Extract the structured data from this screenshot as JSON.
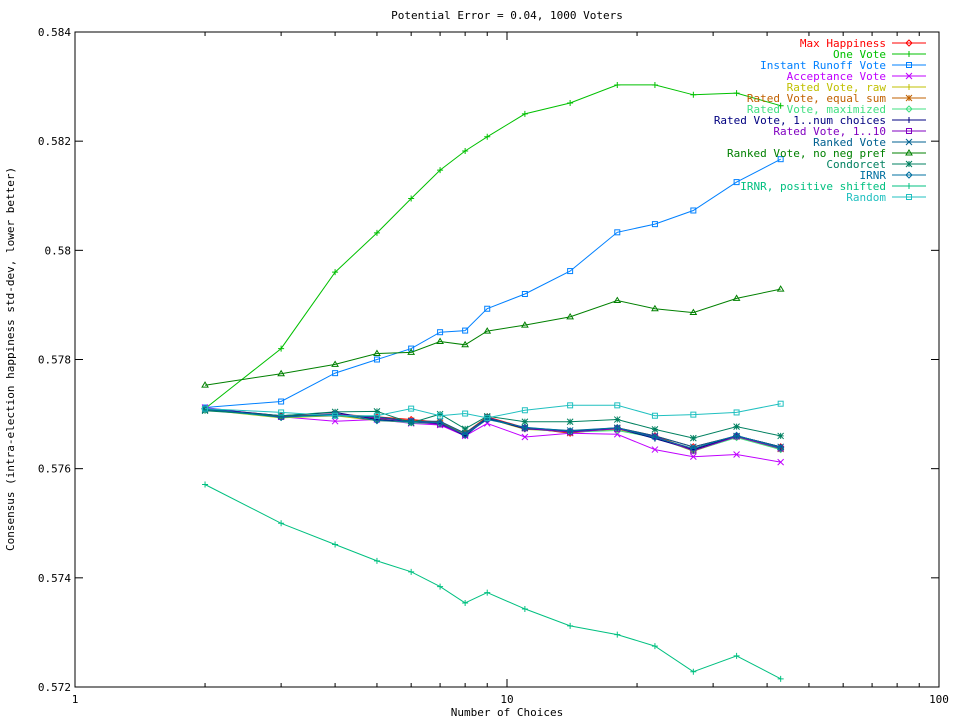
{
  "chart_data": {
    "type": "line",
    "title": "Potential Error = 0.04, 1000 Voters",
    "xlabel": "Number of Choices",
    "ylabel": "Consensus (intra-election happiness std-dev, lower better)",
    "x_scale": "log",
    "xlim": [
      1,
      100
    ],
    "ylim": [
      0.572,
      0.584
    ],
    "x_ticks": [
      1,
      10,
      100
    ],
    "x_tick_labels": [
      "1",
      "10",
      "100"
    ],
    "y_ticks": [
      0.572,
      0.574,
      0.576,
      0.578,
      0.58,
      0.582,
      0.584
    ],
    "y_tick_labels": [
      "0.572",
      "0.574",
      "0.576",
      "0.578",
      "0.58",
      "0.582",
      "0.584"
    ],
    "grid": false,
    "legend_position": "top-right",
    "x": [
      2,
      3,
      4,
      5,
      6,
      7,
      8,
      9,
      11,
      14,
      18,
      22,
      27,
      34,
      43
    ],
    "series": [
      {
        "name": "Max Happiness",
        "color": "#ff0000",
        "marker": "diamond",
        "values": [
          0.5771,
          0.57697,
          0.577,
          0.57695,
          0.5769,
          0.57685,
          0.57665,
          0.57695,
          0.57675,
          0.57665,
          0.57675,
          0.5766,
          0.5764,
          0.5766,
          0.5764
        ]
      },
      {
        "name": "One Vote",
        "color": "#00c000",
        "marker": "plus",
        "values": [
          0.5771,
          0.5782,
          0.5796,
          0.58032,
          0.58095,
          0.58147,
          0.58182,
          0.58208,
          0.5825,
          0.5827,
          0.58303,
          0.58303,
          0.58285,
          0.58288,
          0.58265
        ]
      },
      {
        "name": "Instant Runoff Vote",
        "color": "#0080ff",
        "marker": "square",
        "values": [
          0.57712,
          0.57723,
          0.57775,
          0.578,
          0.5782,
          0.5785,
          0.57853,
          0.57893,
          0.5792,
          0.57962,
          0.58033,
          0.58048,
          0.58073,
          0.58125,
          0.58167
        ]
      },
      {
        "name": "Acceptance Vote",
        "color": "#c000ff",
        "marker": "x",
        "values": [
          0.57712,
          0.57695,
          0.57687,
          0.5769,
          0.57683,
          0.5768,
          0.5766,
          0.57683,
          0.57658,
          0.57665,
          0.57663,
          0.57635,
          0.57622,
          0.57626,
          0.57612
        ]
      },
      {
        "name": "Rated Vote, raw",
        "color": "#c0c000",
        "marker": "plus",
        "values": [
          0.57708,
          0.57693,
          0.57697,
          0.57688,
          0.57685,
          0.57682,
          0.57663,
          0.57692,
          0.57672,
          0.57668,
          0.57672,
          0.57658,
          0.57632,
          0.57658,
          0.57638
        ]
      },
      {
        "name": "Rated Vote, equal sum",
        "color": "#c06000",
        "marker": "star",
        "values": [
          0.57709,
          0.57696,
          0.577,
          0.57692,
          0.57688,
          0.57684,
          0.57665,
          0.57694,
          0.57674,
          0.57666,
          0.57674,
          0.5766,
          0.57634,
          0.57659,
          0.57636
        ]
      },
      {
        "name": "Rated Vote, maximized",
        "color": "#40e080",
        "marker": "diamond",
        "values": [
          0.57708,
          0.57694,
          0.57698,
          0.5769,
          0.57684,
          0.57682,
          0.57662,
          0.57693,
          0.57673,
          0.57667,
          0.5767,
          0.57657,
          0.57633,
          0.57657,
          0.57635
        ]
      },
      {
        "name": "Rated Vote, 1..num choices",
        "color": "#000080",
        "marker": "plus",
        "values": [
          0.5771,
          0.57697,
          0.57703,
          0.5769,
          0.57686,
          0.57683,
          0.5766,
          0.57692,
          0.57673,
          0.57668,
          0.57674,
          0.57655,
          0.57635,
          0.5766,
          0.5764
        ]
      },
      {
        "name": "Rated Vote, 1..10",
        "color": "#8000c0",
        "marker": "square",
        "values": [
          0.5771,
          0.57695,
          0.577,
          0.57693,
          0.57687,
          0.57681,
          0.57662,
          0.57694,
          0.57674,
          0.57667,
          0.57673,
          0.57659,
          0.57633,
          0.57659,
          0.57637
        ]
      },
      {
        "name": "Ranked Vote",
        "color": "#006090",
        "marker": "x",
        "values": [
          0.57708,
          0.57697,
          0.57697,
          0.57695,
          0.57687,
          0.57687,
          0.57665,
          0.57693,
          0.57675,
          0.5767,
          0.57675,
          0.5766,
          0.5764,
          0.5766,
          0.5764
        ]
      },
      {
        "name": "Ranked Vote, no neg pref",
        "color": "#008000",
        "marker": "triangle",
        "values": [
          0.57753,
          0.57774,
          0.57791,
          0.57811,
          0.57813,
          0.57833,
          0.57827,
          0.57852,
          0.57863,
          0.57878,
          0.57908,
          0.57893,
          0.57886,
          0.57912,
          0.57929
        ]
      },
      {
        "name": "Condorcet",
        "color": "#008060",
        "marker": "star",
        "values": [
          0.57706,
          0.57697,
          0.57704,
          0.57705,
          0.57684,
          0.577,
          0.57673,
          0.57696,
          0.57686,
          0.57686,
          0.5769,
          0.57672,
          0.57656,
          0.57677,
          0.5766
        ]
      },
      {
        "name": "IRNR",
        "color": "#0070a0",
        "marker": "diamond",
        "values": [
          0.5771,
          0.57694,
          0.577,
          0.57688,
          0.57686,
          0.57684,
          0.57662,
          0.5769,
          0.57676,
          0.57669,
          0.57675,
          0.57657,
          0.57637,
          0.57661,
          0.57638
        ]
      },
      {
        "name": "IRNR, positive shifted",
        "color": "#00c080",
        "marker": "plus",
        "values": [
          0.57571,
          0.575,
          0.57461,
          0.57431,
          0.57411,
          0.57384,
          0.57354,
          0.57373,
          0.57343,
          0.57312,
          0.57296,
          0.57275,
          0.57228,
          0.57257,
          0.57215
        ]
      },
      {
        "name": "Random",
        "color": "#20c0c0",
        "marker": "square",
        "values": [
          0.5771,
          0.57703,
          0.57697,
          0.57697,
          0.5771,
          0.57697,
          0.57701,
          0.57693,
          0.57707,
          0.57716,
          0.57716,
          0.57697,
          0.57699,
          0.57703,
          0.57719
        ]
      }
    ]
  }
}
